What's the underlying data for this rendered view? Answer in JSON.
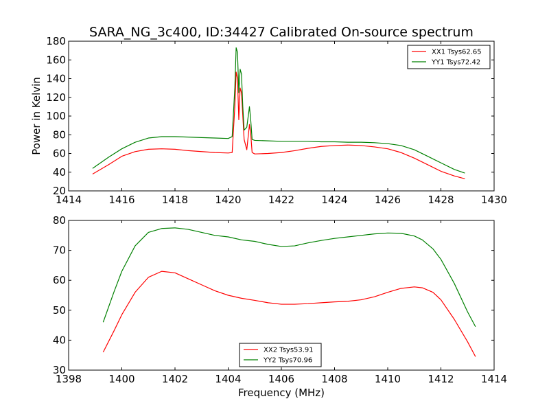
{
  "chart_data": [
    {
      "type": "line",
      "title": "SARA_NG_3c400, ID:34427 Calibrated On-source spectrum",
      "xlabel": "",
      "ylabel": "Power in Kelvin",
      "xlim": [
        1414,
        1430
      ],
      "ylim": [
        20,
        180
      ],
      "xticks": [
        1414,
        1416,
        1418,
        1420,
        1422,
        1424,
        1426,
        1428,
        1430
      ],
      "yticks": [
        20,
        40,
        60,
        80,
        100,
        120,
        140,
        160,
        180
      ],
      "grid": false,
      "legend_position": "top-right",
      "series": [
        {
          "name": "XX1 Tsys62.65",
          "color": "#ff0000",
          "x": [
            1414.9,
            1415.5,
            1416.0,
            1416.5,
            1417.0,
            1417.5,
            1418.0,
            1418.5,
            1419.0,
            1419.5,
            1420.0,
            1420.15,
            1420.25,
            1420.3,
            1420.35,
            1420.4,
            1420.45,
            1420.5,
            1420.55,
            1420.6,
            1420.7,
            1420.8,
            1420.85,
            1420.9,
            1421.0,
            1421.5,
            1422.0,
            1422.5,
            1423.0,
            1423.5,
            1424.0,
            1424.5,
            1425.0,
            1425.5,
            1426.0,
            1426.5,
            1427.0,
            1427.5,
            1428.0,
            1428.5,
            1428.9
          ],
          "y": [
            38,
            48,
            57,
            62,
            64.5,
            65,
            64.5,
            63,
            62,
            61,
            60.5,
            61,
            110,
            147,
            140,
            96,
            130,
            125,
            100,
            75,
            64,
            91,
            80,
            61,
            59.5,
            60,
            61,
            63,
            65.5,
            67.5,
            68.5,
            69,
            68.5,
            67,
            65,
            61,
            55,
            48,
            41,
            36,
            33
          ]
        },
        {
          "name": "YY1 Tsys72.42",
          "color": "#008000",
          "x": [
            1414.9,
            1415.5,
            1416.0,
            1416.5,
            1417.0,
            1417.5,
            1418.0,
            1418.5,
            1419.0,
            1419.5,
            1420.0,
            1420.15,
            1420.25,
            1420.3,
            1420.35,
            1420.4,
            1420.45,
            1420.5,
            1420.55,
            1420.6,
            1420.7,
            1420.8,
            1420.85,
            1420.9,
            1421.0,
            1421.5,
            1422.0,
            1422.5,
            1423.0,
            1423.5,
            1424.0,
            1424.5,
            1425.0,
            1425.5,
            1426.0,
            1426.5,
            1427.0,
            1427.5,
            1428.0,
            1428.5,
            1428.9
          ],
          "y": [
            44,
            56,
            65,
            72,
            76.5,
            78,
            78,
            77.5,
            77,
            76.5,
            76,
            78,
            130,
            173,
            168,
            125,
            150,
            145,
            110,
            85,
            88,
            110,
            95,
            75,
            74,
            73.5,
            73,
            73,
            73,
            72.5,
            72.5,
            72,
            72,
            71.5,
            70.5,
            68.5,
            64,
            57,
            50,
            43,
            39
          ]
        }
      ]
    },
    {
      "type": "line",
      "title": "",
      "xlabel": "Frequency (MHz)",
      "ylabel": "",
      "xlim": [
        1398,
        1414
      ],
      "ylim": [
        30,
        80
      ],
      "xticks": [
        1398,
        1400,
        1402,
        1404,
        1406,
        1408,
        1410,
        1412,
        1414
      ],
      "yticks": [
        30,
        40,
        50,
        60,
        70,
        80
      ],
      "grid": false,
      "legend_position": "bottom-center",
      "series": [
        {
          "name": "XX2 Tsys53.91",
          "color": "#ff0000",
          "x": [
            1399.3,
            1399.7,
            1400.0,
            1400.5,
            1401.0,
            1401.5,
            1402.0,
            1402.5,
            1403.0,
            1403.5,
            1404.0,
            1404.5,
            1405.0,
            1405.5,
            1406.0,
            1406.5,
            1407.0,
            1407.5,
            1408.0,
            1408.5,
            1409.0,
            1409.5,
            1410.0,
            1410.5,
            1411.0,
            1411.3,
            1411.7,
            1412.0,
            1412.5,
            1413.0,
            1413.3
          ],
          "y": [
            36,
            43,
            48.5,
            56,
            61,
            63,
            62.5,
            60.5,
            58.5,
            56.5,
            55,
            54,
            53.3,
            52.5,
            52,
            52,
            52.2,
            52.5,
            52.8,
            53,
            53.5,
            54.5,
            56,
            57.3,
            57.8,
            57.5,
            56,
            53.5,
            47,
            39.5,
            34.5
          ]
        },
        {
          "name": "YY2 Tsys70.96",
          "color": "#008000",
          "x": [
            1399.3,
            1399.7,
            1400.0,
            1400.5,
            1401.0,
            1401.5,
            1402.0,
            1402.5,
            1403.0,
            1403.5,
            1404.0,
            1404.5,
            1405.0,
            1405.5,
            1406.0,
            1406.5,
            1407.0,
            1407.5,
            1408.0,
            1408.5,
            1409.0,
            1409.5,
            1410.0,
            1410.5,
            1411.0,
            1411.3,
            1411.7,
            1412.0,
            1412.5,
            1413.0,
            1413.3
          ],
          "y": [
            46,
            56,
            63,
            71.5,
            76,
            77.3,
            77.5,
            77,
            76,
            75,
            74.5,
            73.5,
            73,
            72,
            71.3,
            71.5,
            72.5,
            73.3,
            74,
            74.5,
            75,
            75.5,
            75.8,
            75.7,
            74.8,
            73.5,
            70.5,
            67,
            59,
            49.5,
            44.5
          ]
        }
      ]
    }
  ]
}
